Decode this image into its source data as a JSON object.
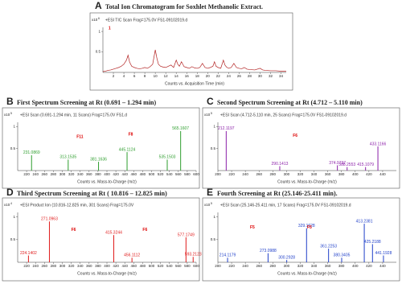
{
  "chart_data": [
    {
      "type": "line",
      "label": "A",
      "title": "Total Ion Chromatogram for Soxhlet Methanolic Extract.",
      "subtitle": "+ESI TIC Scan Frag=175.0V FS1-09102019.d",
      "y_multiplier": "x10",
      "y_exponent": "6",
      "xlabel": "Counts vs. Acquisition Time (min)",
      "annotations": [
        "1"
      ],
      "color": "#b22222",
      "x": [
        0,
        0.5,
        1,
        1.5,
        2,
        2.5,
        3,
        3.5,
        4,
        4.5,
        4.8,
        5.1,
        5.5,
        6,
        6.5,
        7,
        7.5,
        8,
        8.5,
        9,
        9.5,
        10,
        10.3,
        10.6,
        11,
        11.5,
        12,
        12.5,
        13,
        13.5,
        14,
        14.3,
        14.6,
        15,
        15.5,
        16,
        16.5,
        17,
        17.5,
        18,
        18.5,
        19,
        19.5,
        20,
        20.5,
        21,
        21.3,
        21.6,
        22,
        22.5,
        23,
        23.3,
        23.6,
        24,
        24.5,
        25,
        25.5,
        26,
        26.5,
        27,
        27.5,
        28,
        29,
        30,
        30.5,
        31,
        32,
        33,
        34,
        35
      ],
      "values": [
        0.02,
        0.03,
        0.05,
        0.06,
        0.08,
        0.1,
        0.12,
        0.15,
        0.2,
        0.3,
        0.42,
        0.25,
        0.15,
        0.12,
        0.1,
        0.09,
        0.1,
        0.12,
        0.1,
        0.14,
        0.2,
        0.55,
        0.35,
        0.2,
        0.15,
        0.13,
        0.12,
        0.15,
        0.18,
        0.12,
        0.3,
        0.2,
        0.15,
        0.26,
        0.14,
        0.12,
        0.1,
        0.14,
        0.11,
        0.1,
        0.12,
        0.22,
        0.12,
        0.1,
        0.12,
        0.15,
        0.26,
        0.15,
        0.12,
        0.1,
        0.3,
        0.18,
        0.13,
        0.1,
        0.12,
        0.22,
        0.12,
        0.1,
        0.09,
        0.12,
        0.08,
        0.07,
        0.06,
        0.1,
        0.06,
        0.05,
        0.04,
        0.04,
        0.03,
        0.03
      ],
      "xlim": [
        0,
        35
      ],
      "xticks": [
        2,
        4,
        6,
        8,
        10,
        12,
        14,
        16,
        18,
        20,
        22,
        24,
        26,
        28,
        30,
        32,
        34
      ],
      "ylim": [
        0,
        1.1
      ],
      "yticks": [
        0.5,
        1
      ]
    },
    {
      "type": "stick",
      "label": "B",
      "title": "First Spectrum Screening at Rt (0.691 – 1.294 min)",
      "subtitle": "+ESI Scan (0.691-1.294 min, 11 Scans) Frag=175.0V FS1.d",
      "y_multiplier": "x10",
      "y_exponent": "5",
      "xlabel": "Counts vs. Mass-to-Charge (m/z)",
      "annotations": [
        "F11",
        "F8"
      ],
      "color": "#2e9e2e",
      "x": [
        231.0869,
        313.1535,
        381.1636,
        445.1124,
        535.1503,
        565.1607
      ],
      "values": [
        0.35,
        0.25,
        0.2,
        0.42,
        0.25,
        0.9
      ],
      "xlim": [
        200,
        600
      ],
      "xticks": [
        220,
        240,
        260,
        280,
        300,
        320,
        340,
        360,
        380,
        400,
        420,
        440,
        460,
        480,
        500,
        520,
        540,
        560,
        580,
        600
      ],
      "ylim": [
        0,
        1.1
      ],
      "yticks": [
        0.5,
        1
      ]
    },
    {
      "type": "stick",
      "label": "C",
      "title": "Second Spectrum Screening at Rt (4.712 – 5.110 min)",
      "subtitle": "+ESI Scan (4.712-5.110 min, 25 Scans) Frag=175.0V FS1-09102019.d",
      "y_multiplier": "x10",
      "y_exponent": "5",
      "xlabel": "Counts vs. Mass-to-Charge (m/z)",
      "annotations": [
        "F6"
      ],
      "color": "#8b1fa9",
      "x": [
        212.1197,
        290.1413,
        374.0737,
        388.2553,
        415.1079,
        433.1166
      ],
      "values": [
        0.9,
        0.1,
        0.12,
        0.08,
        0.08,
        0.55
      ],
      "xlim": [
        200,
        460
      ],
      "xticks": [
        200,
        220,
        240,
        260,
        280,
        300,
        320,
        340,
        360,
        380,
        400,
        420,
        440
      ],
      "ylim": [
        0,
        1.1
      ],
      "yticks": [
        0.5,
        1
      ]
    },
    {
      "type": "stick",
      "label": "D",
      "title": "Third Spectrum Screening at Rt ( 10.816 – 12.825 min)",
      "subtitle": "+ESI Product Ion (10.816-12.825 min, 301 Scans) Frag=175.0V",
      "y_multiplier": "x10",
      "y_exponent": "4",
      "xlabel": "Counts vs. Mass-to-Charge (m/z)",
      "annotations": [
        "F6",
        "F6"
      ],
      "color": "#e01b1b",
      "x": [
        224.1402,
        271.0963,
        415.3244,
        456.1112,
        577.1749,
        593.2123
      ],
      "values": [
        0.15,
        0.9,
        0.6,
        0.1,
        0.55,
        0.12
      ],
      "xlim": [
        200,
        600
      ],
      "xticks": [
        220,
        240,
        260,
        280,
        300,
        320,
        340,
        360,
        380,
        400,
        420,
        440,
        460,
        480,
        500,
        520,
        540,
        560,
        580,
        600
      ],
      "ylim": [
        0,
        1.1
      ],
      "yticks": [
        0.5,
        1
      ]
    },
    {
      "type": "stick",
      "label": "E",
      "title": "Fourth Screening at Rt (25.146-25.411 min).",
      "subtitle": "+ESI Scan (25.146-25.411 min, 17 Scans) Frag=175.0V FS1-09102019.d",
      "y_multiplier": "x10",
      "y_exponent": "5",
      "xlabel": "Counts vs. Mass-to-Charge (m/z)",
      "annotations": [
        "F5",
        "F5"
      ],
      "color": "#1f3fc9",
      "x": [
        214.1179,
        273.0988,
        300.2928,
        329.1628,
        361.2253,
        380.3405,
        413.2381,
        425.2188,
        441.1928
      ],
      "values": [
        0.1,
        0.2,
        0.05,
        0.75,
        0.3,
        0.1,
        0.85,
        0.4,
        0.15
      ],
      "xlim": [
        200,
        460
      ],
      "xticks": [
        200,
        220,
        240,
        260,
        280,
        300,
        320,
        340,
        360,
        380,
        400,
        420,
        440
      ],
      "ylim": [
        0,
        1.1
      ],
      "yticks": [
        0.5,
        1
      ]
    }
  ]
}
